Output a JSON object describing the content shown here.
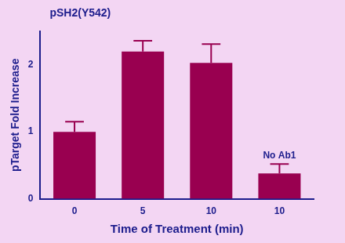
{
  "chart_data": {
    "type": "bar",
    "title": "pSH2(Y542)",
    "x_label": "Time of Treatment (min)",
    "y_label": "pTarget Fold Increase",
    "categories": [
      "0",
      "5",
      "10",
      "10"
    ],
    "values": [
      1.0,
      2.2,
      2.03,
      0.38
    ],
    "errors": [
      0.15,
      0.16,
      0.28,
      0.14
    ],
    "color": "#990050",
    "ylim": [
      0,
      2.5
    ],
    "yticks": [
      0,
      1,
      2
    ],
    "grid": false,
    "annotations": [
      {
        "text": "No Ab1",
        "index": 3
      }
    ]
  }
}
